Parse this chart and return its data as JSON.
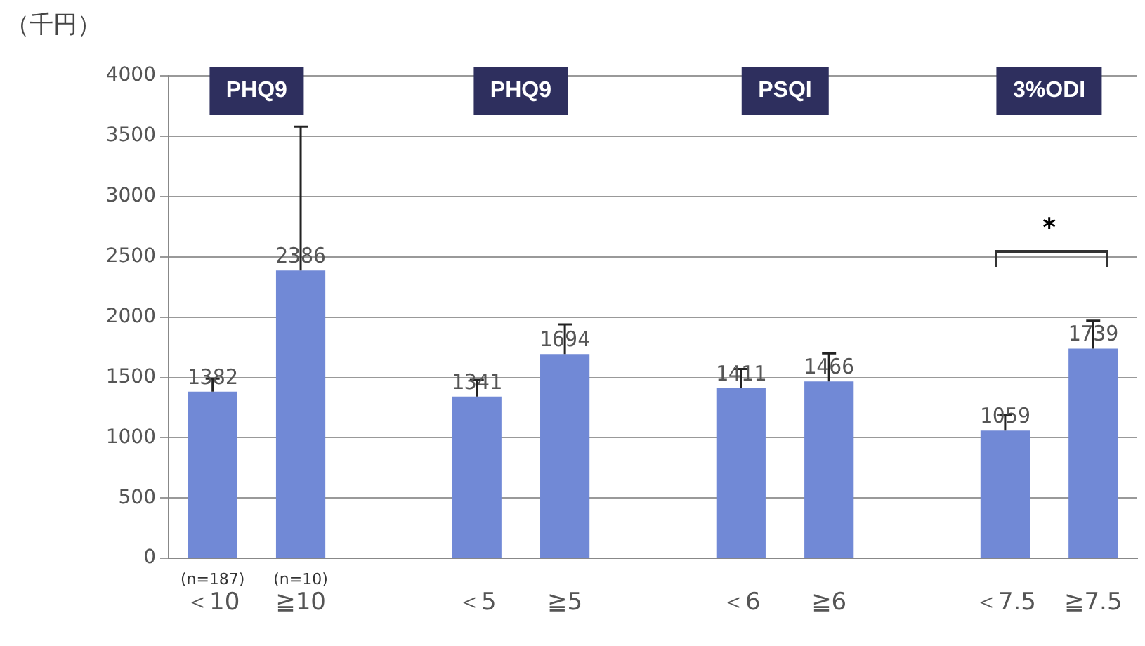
{
  "chart_data": {
    "type": "bar",
    "ylabel": "（千円）",
    "categories": [
      "＜10",
      "≧10",
      null,
      "＜5",
      "≧5",
      null,
      "＜6",
      "≧6",
      null,
      "＜7.5",
      "≧7.5"
    ],
    "values": [
      1382,
      2386,
      null,
      1341,
      1694,
      null,
      1411,
      1466,
      null,
      1059,
      1739
    ],
    "errors": [
      [
        1382,
        1490
      ],
      [
        2386,
        3580
      ],
      null,
      [
        1341,
        1480
      ],
      [
        1694,
        1940
      ],
      null,
      [
        1411,
        1570
      ],
      [
        1466,
        1700
      ],
      null,
      [
        1059,
        1190
      ],
      [
        1739,
        1970
      ]
    ],
    "color": "#7189d6",
    "ylim": [
      0,
      4000
    ],
    "yticks": [
      0,
      500,
      1000,
      1500,
      2000,
      2500,
      3000,
      3500,
      4000
    ],
    "grid": "y",
    "legend": false,
    "data_labels": true,
    "annotations": [
      "PHQ9",
      "PHQ9",
      "PSQI",
      "3%ODI",
      "(n=187)",
      "(n=10)",
      "*"
    ]
  }
}
